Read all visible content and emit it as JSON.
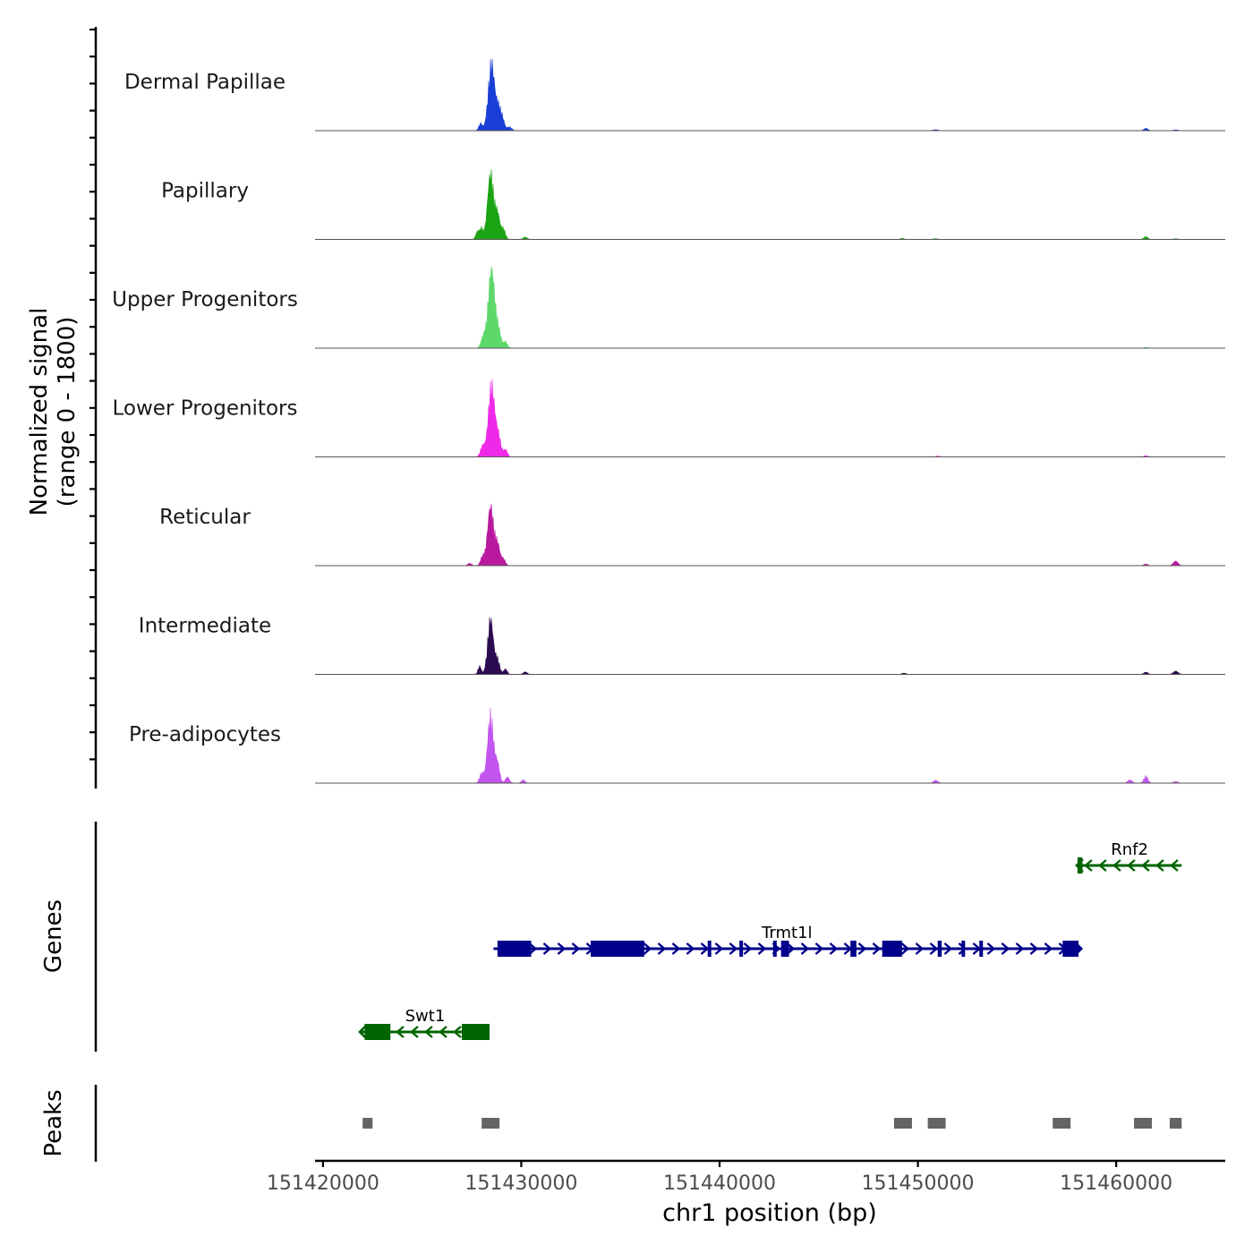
{
  "chart_data": [
    {
      "type": "area",
      "panel": "coverage",
      "ylabel_line1": "Normalized signal",
      "ylabel_line2": "(range 0 - 1800)",
      "ylim": [
        0,
        1800
      ],
      "xlim": [
        151419600,
        151465500
      ],
      "tracks": [
        {
          "name": "Dermal Papillae",
          "color": "#1a3fd6",
          "peaks": [
            [
              151428500,
              1650,
              160
            ],
            [
              151428850,
              500,
              110
            ],
            [
              151429050,
              280,
              100
            ],
            [
              151427950,
              180,
              90
            ],
            [
              151429400,
              90,
              120
            ],
            [
              151450900,
              25,
              120
            ],
            [
              151461500,
              60,
              100
            ],
            [
              151463000,
              20,
              120
            ]
          ]
        },
        {
          "name": "Papillary",
          "color": "#1aa312",
          "peaks": [
            [
              151428450,
              1600,
              150
            ],
            [
              151428800,
              620,
              120
            ],
            [
              151429100,
              250,
              100
            ],
            [
              151427800,
              200,
              90
            ],
            [
              151428000,
              260,
              80
            ],
            [
              151430200,
              60,
              100
            ],
            [
              151449200,
              25,
              110
            ],
            [
              151450900,
              20,
              110
            ],
            [
              151461500,
              70,
              100
            ],
            [
              151463000,
              18,
              110
            ]
          ]
        },
        {
          "name": "Upper Progenitors",
          "color": "#5ed86a",
          "peaks": [
            [
              151428500,
              1950,
              160
            ],
            [
              151428850,
              420,
              120
            ],
            [
              151428100,
              280,
              120
            ],
            [
              151429200,
              160,
              100
            ],
            [
              151461500,
              18,
              100
            ]
          ]
        },
        {
          "name": "Lower Progenitors",
          "color": "#ee2ae8",
          "peaks": [
            [
              151428500,
              1750,
              160
            ],
            [
              151428850,
              480,
              120
            ],
            [
              151428050,
              260,
              110
            ],
            [
              151429200,
              180,
              100
            ],
            [
              151451000,
              22,
              110
            ],
            [
              151461500,
              30,
              100
            ]
          ]
        },
        {
          "name": "Reticular",
          "color": "#b8199e",
          "peaks": [
            [
              151428450,
              1450,
              150
            ],
            [
              151428800,
              520,
              120
            ],
            [
              151428050,
              220,
              100
            ],
            [
              151429100,
              160,
              100
            ],
            [
              151427400,
              60,
              90
            ],
            [
              151461500,
              40,
              100
            ],
            [
              151463000,
              110,
              120
            ]
          ]
        },
        {
          "name": "Intermediate",
          "color": "#2c0a50",
          "peaks": [
            [
              151428450,
              1350,
              140
            ],
            [
              151428800,
              360,
              110
            ],
            [
              151427900,
              200,
              80
            ],
            [
              151429200,
              130,
              90
            ],
            [
              151430200,
              60,
              100
            ],
            [
              151449300,
              30,
              110
            ],
            [
              151461500,
              55,
              100
            ],
            [
              151463000,
              80,
              120
            ]
          ]
        },
        {
          "name": "Pre-adipocytes",
          "color": "#c355ef",
          "peaks": [
            [
              151428450,
              1650,
              150
            ],
            [
              151428800,
              460,
              110
            ],
            [
              151428000,
              240,
              100
            ],
            [
              151429300,
              150,
              100
            ],
            [
              151430100,
              80,
              90
            ],
            [
              151450900,
              70,
              110
            ],
            [
              151460700,
              80,
              110
            ],
            [
              151461500,
              170,
              100
            ],
            [
              151463000,
              40,
              110
            ]
          ]
        }
      ]
    },
    {
      "type": "gene-track",
      "ylabel": "Genes",
      "genes": [
        {
          "name": "Rnf2",
          "start": 151458050,
          "end": 151463300,
          "strand": "-",
          "color": "#006400",
          "row": 0,
          "exons": [
            [
              151458050,
              151458300
            ]
          ]
        },
        {
          "name": "Trmt1l",
          "start": 151428600,
          "end": 151458200,
          "strand": "+",
          "color": "#00008b",
          "row": 1,
          "exons": [
            [
              151428800,
              151430500
            ],
            [
              151433500,
              151436200
            ],
            [
              151439400,
              151439500
            ],
            [
              151441000,
              151441100
            ],
            [
              151442700,
              151442800
            ],
            [
              151443100,
              151443500
            ],
            [
              151446600,
              151446900
            ],
            [
              151448200,
              151449200
            ],
            [
              151451000,
              151451200
            ],
            [
              151452200,
              151452300
            ],
            [
              151453100,
              151453200
            ],
            [
              151457300,
              151458100
            ]
          ]
        },
        {
          "name": "Swt1",
          "start": 151421900,
          "end": 151428400,
          "strand": "-",
          "color": "#006400",
          "row": 2,
          "exons": [
            [
              151422100,
              151423400
            ],
            [
              151427000,
              151428400
            ]
          ]
        }
      ]
    },
    {
      "type": "peak-track",
      "ylabel": "Peaks",
      "peaks": [
        [
          151422000,
          151422500
        ],
        [
          151428000,
          151428900
        ],
        [
          151448800,
          151449700
        ],
        [
          151450500,
          151451400
        ],
        [
          151456800,
          151457700
        ],
        [
          151460900,
          151461800
        ],
        [
          151462700,
          151463300
        ]
      ]
    },
    {
      "type": "axis",
      "xlabel": "chr1 position (bp)",
      "ticks": [
        151420000,
        151430000,
        151440000,
        151450000,
        151460000
      ]
    }
  ]
}
